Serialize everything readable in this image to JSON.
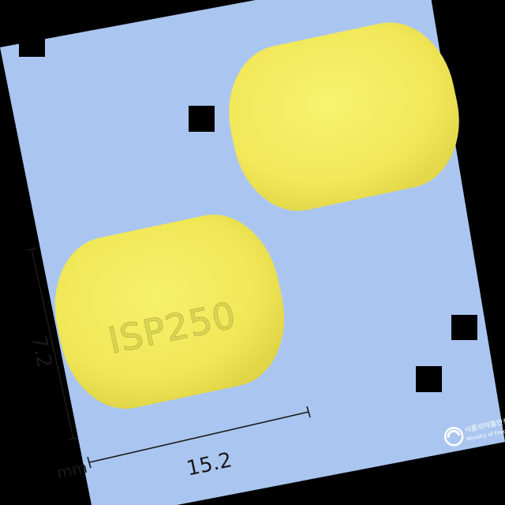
{
  "image": {
    "subject": "pill-identification-photo",
    "background_color": "#aac6f0",
    "frame_color": "#000000"
  },
  "pill": {
    "shape": "oblong",
    "color": "#f2ea5e",
    "imprint": "ISP250"
  },
  "measurements": {
    "length": "15.2",
    "width": "7.2",
    "unit": "mm"
  },
  "watermark": {
    "line1": "식품의약품안전",
    "line2": "Ministry of Food a"
  }
}
